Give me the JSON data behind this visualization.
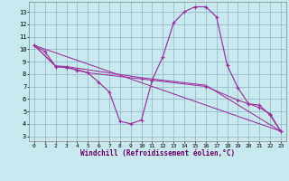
{
  "bg_color": "#c8e8ee",
  "line_color": "#993399",
  "grid_color": "#99bbcc",
  "xlabel": "Windchill (Refroidissement éolien,°C)",
  "xlim": [
    -0.5,
    23.5
  ],
  "ylim": [
    2.6,
    13.8
  ],
  "yticks": [
    3,
    4,
    5,
    6,
    7,
    8,
    9,
    10,
    11,
    12,
    13
  ],
  "xticks": [
    0,
    1,
    2,
    3,
    4,
    5,
    6,
    7,
    8,
    9,
    10,
    11,
    12,
    13,
    14,
    15,
    16,
    17,
    18,
    19,
    20,
    21,
    22,
    23
  ],
  "main_x": [
    0,
    1,
    2,
    3,
    4,
    5,
    6,
    7,
    8,
    9,
    10,
    11,
    12,
    13,
    14,
    15,
    16,
    17,
    18,
    19,
    20,
    21,
    22,
    23
  ],
  "main_y": [
    10.3,
    9.8,
    8.6,
    8.55,
    8.3,
    8.1,
    7.35,
    6.55,
    4.2,
    4.0,
    4.3,
    7.5,
    9.4,
    12.1,
    13.0,
    13.4,
    13.4,
    12.6,
    8.7,
    6.9,
    5.6,
    5.5,
    4.7,
    3.4
  ],
  "line2_x": [
    0,
    2,
    3,
    4,
    5,
    10,
    16,
    19,
    20,
    21,
    22,
    23
  ],
  "line2_y": [
    10.3,
    8.6,
    8.5,
    8.35,
    8.1,
    7.6,
    7.0,
    5.9,
    5.6,
    5.3,
    4.8,
    3.4
  ],
  "line3_x": [
    0,
    2,
    3,
    10,
    16,
    23
  ],
  "line3_y": [
    10.3,
    8.65,
    8.6,
    7.7,
    7.1,
    3.4
  ],
  "line4_x": [
    0,
    23
  ],
  "line4_y": [
    10.3,
    3.4
  ]
}
